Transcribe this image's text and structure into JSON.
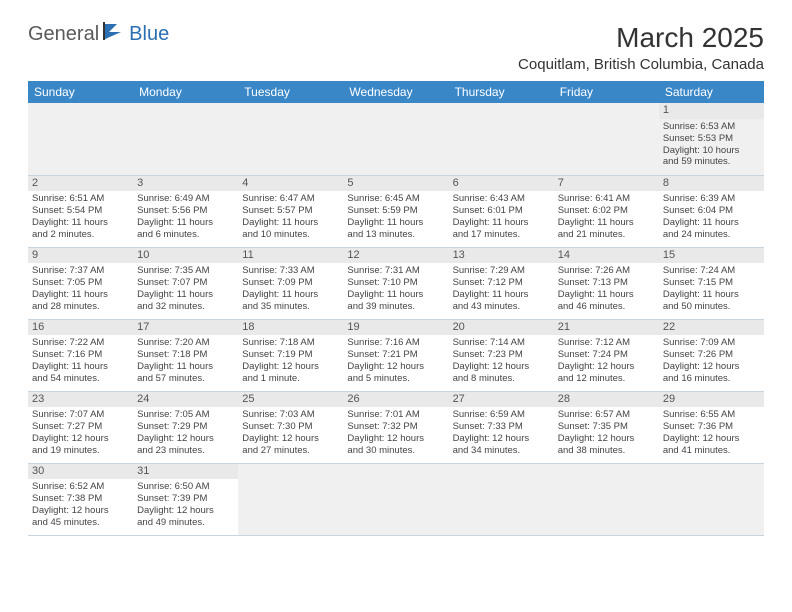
{
  "logo": {
    "word1": "General",
    "word2": "Blue"
  },
  "title": "March 2025",
  "location": "Coquitlam, British Columbia, Canada",
  "colors": {
    "header_bg": "#3a87c8",
    "header_text": "#ffffff",
    "grid_border": "#c8d4e0",
    "daynum_bg": "#e9e9e9",
    "empty_bg": "#f0f0f0",
    "logo_blue": "#2c6fb3",
    "logo_gray": "#5a5a5a",
    "body_text": "#444444"
  },
  "typography": {
    "title_fontsize": 28,
    "location_fontsize": 15,
    "weekday_fontsize": 12,
    "cell_fontsize": 9.5,
    "daynum_fontsize": 11
  },
  "weekdays": [
    "Sunday",
    "Monday",
    "Tuesday",
    "Wednesday",
    "Thursday",
    "Friday",
    "Saturday"
  ],
  "weeks": [
    [
      null,
      null,
      null,
      null,
      null,
      null,
      {
        "n": "1",
        "sr": "Sunrise: 6:53 AM",
        "ss": "Sunset: 5:53 PM",
        "dl1": "Daylight: 10 hours",
        "dl2": "and 59 minutes."
      }
    ],
    [
      {
        "n": "2",
        "sr": "Sunrise: 6:51 AM",
        "ss": "Sunset: 5:54 PM",
        "dl1": "Daylight: 11 hours",
        "dl2": "and 2 minutes."
      },
      {
        "n": "3",
        "sr": "Sunrise: 6:49 AM",
        "ss": "Sunset: 5:56 PM",
        "dl1": "Daylight: 11 hours",
        "dl2": "and 6 minutes."
      },
      {
        "n": "4",
        "sr": "Sunrise: 6:47 AM",
        "ss": "Sunset: 5:57 PM",
        "dl1": "Daylight: 11 hours",
        "dl2": "and 10 minutes."
      },
      {
        "n": "5",
        "sr": "Sunrise: 6:45 AM",
        "ss": "Sunset: 5:59 PM",
        "dl1": "Daylight: 11 hours",
        "dl2": "and 13 minutes."
      },
      {
        "n": "6",
        "sr": "Sunrise: 6:43 AM",
        "ss": "Sunset: 6:01 PM",
        "dl1": "Daylight: 11 hours",
        "dl2": "and 17 minutes."
      },
      {
        "n": "7",
        "sr": "Sunrise: 6:41 AM",
        "ss": "Sunset: 6:02 PM",
        "dl1": "Daylight: 11 hours",
        "dl2": "and 21 minutes."
      },
      {
        "n": "8",
        "sr": "Sunrise: 6:39 AM",
        "ss": "Sunset: 6:04 PM",
        "dl1": "Daylight: 11 hours",
        "dl2": "and 24 minutes."
      }
    ],
    [
      {
        "n": "9",
        "sr": "Sunrise: 7:37 AM",
        "ss": "Sunset: 7:05 PM",
        "dl1": "Daylight: 11 hours",
        "dl2": "and 28 minutes."
      },
      {
        "n": "10",
        "sr": "Sunrise: 7:35 AM",
        "ss": "Sunset: 7:07 PM",
        "dl1": "Daylight: 11 hours",
        "dl2": "and 32 minutes."
      },
      {
        "n": "11",
        "sr": "Sunrise: 7:33 AM",
        "ss": "Sunset: 7:09 PM",
        "dl1": "Daylight: 11 hours",
        "dl2": "and 35 minutes."
      },
      {
        "n": "12",
        "sr": "Sunrise: 7:31 AM",
        "ss": "Sunset: 7:10 PM",
        "dl1": "Daylight: 11 hours",
        "dl2": "and 39 minutes."
      },
      {
        "n": "13",
        "sr": "Sunrise: 7:29 AM",
        "ss": "Sunset: 7:12 PM",
        "dl1": "Daylight: 11 hours",
        "dl2": "and 43 minutes."
      },
      {
        "n": "14",
        "sr": "Sunrise: 7:26 AM",
        "ss": "Sunset: 7:13 PM",
        "dl1": "Daylight: 11 hours",
        "dl2": "and 46 minutes."
      },
      {
        "n": "15",
        "sr": "Sunrise: 7:24 AM",
        "ss": "Sunset: 7:15 PM",
        "dl1": "Daylight: 11 hours",
        "dl2": "and 50 minutes."
      }
    ],
    [
      {
        "n": "16",
        "sr": "Sunrise: 7:22 AM",
        "ss": "Sunset: 7:16 PM",
        "dl1": "Daylight: 11 hours",
        "dl2": "and 54 minutes."
      },
      {
        "n": "17",
        "sr": "Sunrise: 7:20 AM",
        "ss": "Sunset: 7:18 PM",
        "dl1": "Daylight: 11 hours",
        "dl2": "and 57 minutes."
      },
      {
        "n": "18",
        "sr": "Sunrise: 7:18 AM",
        "ss": "Sunset: 7:19 PM",
        "dl1": "Daylight: 12 hours",
        "dl2": "and 1 minute."
      },
      {
        "n": "19",
        "sr": "Sunrise: 7:16 AM",
        "ss": "Sunset: 7:21 PM",
        "dl1": "Daylight: 12 hours",
        "dl2": "and 5 minutes."
      },
      {
        "n": "20",
        "sr": "Sunrise: 7:14 AM",
        "ss": "Sunset: 7:23 PM",
        "dl1": "Daylight: 12 hours",
        "dl2": "and 8 minutes."
      },
      {
        "n": "21",
        "sr": "Sunrise: 7:12 AM",
        "ss": "Sunset: 7:24 PM",
        "dl1": "Daylight: 12 hours",
        "dl2": "and 12 minutes."
      },
      {
        "n": "22",
        "sr": "Sunrise: 7:09 AM",
        "ss": "Sunset: 7:26 PM",
        "dl1": "Daylight: 12 hours",
        "dl2": "and 16 minutes."
      }
    ],
    [
      {
        "n": "23",
        "sr": "Sunrise: 7:07 AM",
        "ss": "Sunset: 7:27 PM",
        "dl1": "Daylight: 12 hours",
        "dl2": "and 19 minutes."
      },
      {
        "n": "24",
        "sr": "Sunrise: 7:05 AM",
        "ss": "Sunset: 7:29 PM",
        "dl1": "Daylight: 12 hours",
        "dl2": "and 23 minutes."
      },
      {
        "n": "25",
        "sr": "Sunrise: 7:03 AM",
        "ss": "Sunset: 7:30 PM",
        "dl1": "Daylight: 12 hours",
        "dl2": "and 27 minutes."
      },
      {
        "n": "26",
        "sr": "Sunrise: 7:01 AM",
        "ss": "Sunset: 7:32 PM",
        "dl1": "Daylight: 12 hours",
        "dl2": "and 30 minutes."
      },
      {
        "n": "27",
        "sr": "Sunrise: 6:59 AM",
        "ss": "Sunset: 7:33 PM",
        "dl1": "Daylight: 12 hours",
        "dl2": "and 34 minutes."
      },
      {
        "n": "28",
        "sr": "Sunrise: 6:57 AM",
        "ss": "Sunset: 7:35 PM",
        "dl1": "Daylight: 12 hours",
        "dl2": "and 38 minutes."
      },
      {
        "n": "29",
        "sr": "Sunrise: 6:55 AM",
        "ss": "Sunset: 7:36 PM",
        "dl1": "Daylight: 12 hours",
        "dl2": "and 41 minutes."
      }
    ],
    [
      {
        "n": "30",
        "sr": "Sunrise: 6:52 AM",
        "ss": "Sunset: 7:38 PM",
        "dl1": "Daylight: 12 hours",
        "dl2": "and 45 minutes."
      },
      {
        "n": "31",
        "sr": "Sunrise: 6:50 AM",
        "ss": "Sunset: 7:39 PM",
        "dl1": "Daylight: 12 hours",
        "dl2": "and 49 minutes."
      },
      null,
      null,
      null,
      null,
      null
    ]
  ]
}
